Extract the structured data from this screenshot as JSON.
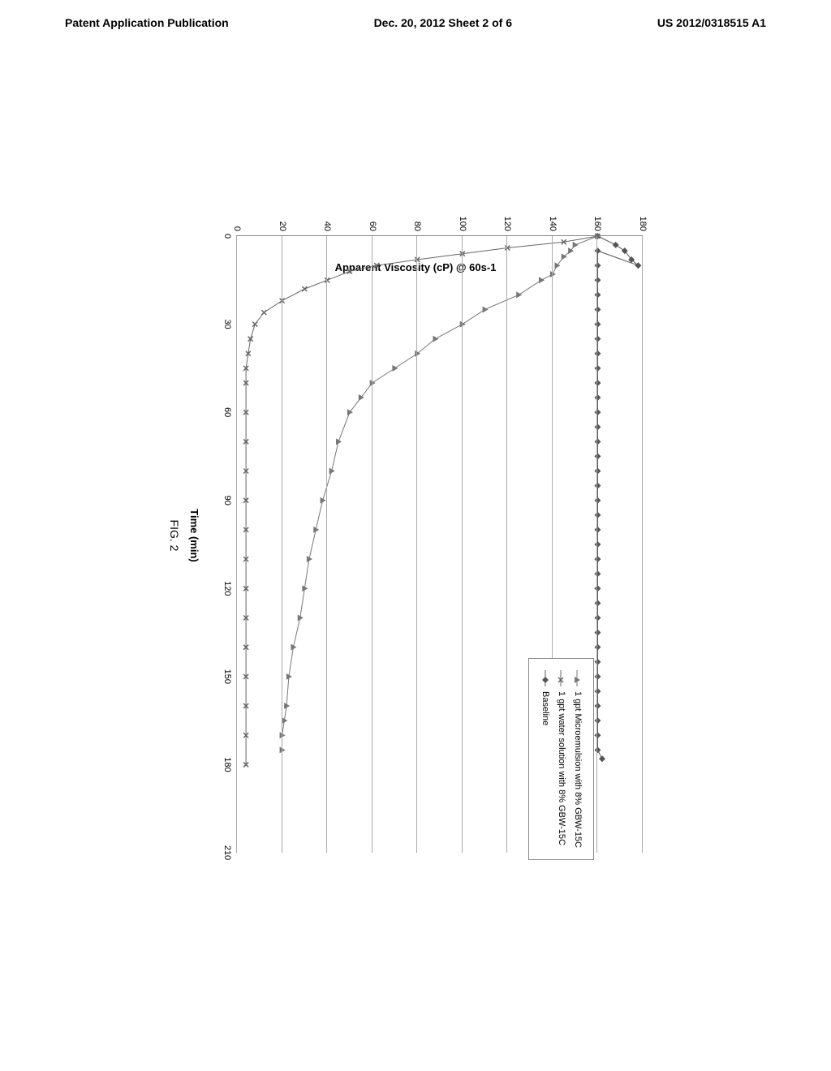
{
  "header": {
    "left": "Patent Application Publication",
    "center": "Dec. 20, 2012  Sheet 2 of 6",
    "right": "US 2012/0318515 A1"
  },
  "chart": {
    "type": "line",
    "ylabel": "Apparent Viscosity (cP) @ 60s-1",
    "xlabel": "Time (min)",
    "figure_label": "FIG. 2",
    "xlim": [
      0,
      210
    ],
    "ylim": [
      0,
      180
    ],
    "xtick_step": 30,
    "ytick_step": 20,
    "background_color": "#ffffff",
    "grid_color": "#aaaaaa",
    "series": [
      {
        "name": "baseline",
        "label": "Baseline",
        "marker": "diamond",
        "color": "#555555",
        "data": [
          [
            0,
            160
          ],
          [
            3,
            168
          ],
          [
            5,
            172
          ],
          [
            8,
            175
          ],
          [
            10,
            178
          ],
          [
            5,
            160
          ],
          [
            10,
            160
          ],
          [
            15,
            160
          ],
          [
            20,
            160
          ],
          [
            25,
            160
          ],
          [
            30,
            160
          ],
          [
            35,
            160
          ],
          [
            40,
            160
          ],
          [
            45,
            160
          ],
          [
            50,
            160
          ],
          [
            55,
            160
          ],
          [
            60,
            160
          ],
          [
            65,
            160
          ],
          [
            70,
            160
          ],
          [
            75,
            160
          ],
          [
            80,
            160
          ],
          [
            85,
            160
          ],
          [
            90,
            160
          ],
          [
            95,
            160
          ],
          [
            100,
            160
          ],
          [
            105,
            160
          ],
          [
            110,
            160
          ],
          [
            115,
            160
          ],
          [
            120,
            160
          ],
          [
            125,
            160
          ],
          [
            130,
            160
          ],
          [
            135,
            160
          ],
          [
            140,
            160
          ],
          [
            145,
            160
          ],
          [
            150,
            160
          ],
          [
            155,
            160
          ],
          [
            160,
            160
          ],
          [
            165,
            160
          ],
          [
            170,
            160
          ],
          [
            175,
            160
          ],
          [
            178,
            162
          ]
        ]
      },
      {
        "name": "microemulsion",
        "label": "1 gpt Microemulsion with 8% GBW-15C",
        "marker": "triangle",
        "color": "#777777",
        "data": [
          [
            0,
            160
          ],
          [
            3,
            150
          ],
          [
            5,
            148
          ],
          [
            7,
            145
          ],
          [
            10,
            142
          ],
          [
            13,
            140
          ],
          [
            15,
            135
          ],
          [
            20,
            125
          ],
          [
            25,
            110
          ],
          [
            30,
            100
          ],
          [
            35,
            88
          ],
          [
            40,
            80
          ],
          [
            45,
            70
          ],
          [
            50,
            60
          ],
          [
            55,
            55
          ],
          [
            60,
            50
          ],
          [
            70,
            45
          ],
          [
            80,
            42
          ],
          [
            90,
            38
          ],
          [
            100,
            35
          ],
          [
            110,
            32
          ],
          [
            120,
            30
          ],
          [
            130,
            28
          ],
          [
            140,
            25
          ],
          [
            150,
            23
          ],
          [
            160,
            22
          ],
          [
            165,
            21
          ],
          [
            170,
            20
          ],
          [
            175,
            20
          ]
        ]
      },
      {
        "name": "water",
        "label": "1 gpt water solution with 8% GBW-15C",
        "marker": "x",
        "color": "#666666",
        "data": [
          [
            0,
            160
          ],
          [
            2,
            145
          ],
          [
            4,
            120
          ],
          [
            6,
            100
          ],
          [
            8,
            80
          ],
          [
            10,
            62
          ],
          [
            12,
            50
          ],
          [
            15,
            40
          ],
          [
            18,
            30
          ],
          [
            22,
            20
          ],
          [
            26,
            12
          ],
          [
            30,
            8
          ],
          [
            35,
            6
          ],
          [
            40,
            5
          ],
          [
            45,
            4
          ],
          [
            50,
            4
          ],
          [
            60,
            4
          ],
          [
            70,
            4
          ],
          [
            80,
            4
          ],
          [
            90,
            4
          ],
          [
            100,
            4
          ],
          [
            110,
            4
          ],
          [
            120,
            4
          ],
          [
            130,
            4
          ],
          [
            140,
            4
          ],
          [
            150,
            4
          ],
          [
            160,
            4
          ],
          [
            170,
            4
          ],
          [
            180,
            4
          ]
        ]
      }
    ]
  }
}
